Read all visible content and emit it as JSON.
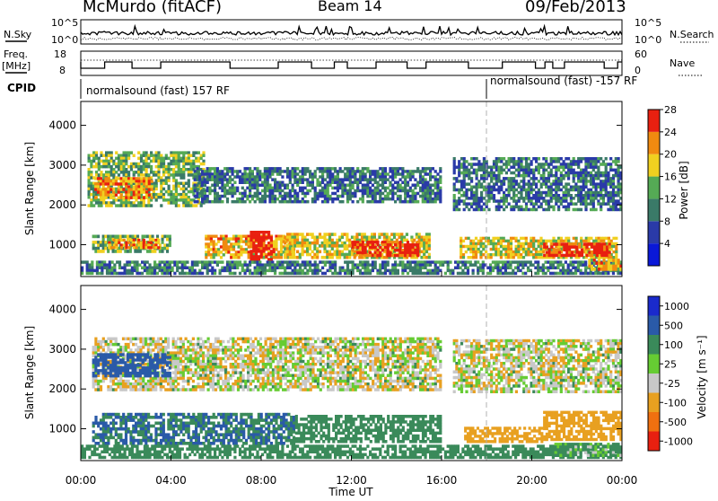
{
  "header": {
    "station": "McMurdo (fitACF)",
    "beam": "Beam 14",
    "date": "09/Feb/2013"
  },
  "panels": {
    "nsky": {
      "left_label": "N.Sky",
      "right_label": "N.Search",
      "left_ticks": [
        "10^5",
        "10^0"
      ],
      "right_ticks": [
        "10^5",
        "10^0"
      ]
    },
    "freq": {
      "left_label_1": "Freq.",
      "left_label_2": "[MHz]",
      "right_label": "Nave",
      "left_ticks": [
        "18",
        "8"
      ],
      "right_ticks": [
        "60",
        "0"
      ]
    },
    "cpid": {
      "label": "CPID",
      "mode_1": "normalsound (fast) 157 RF",
      "mode_2": "normalsound (fast) -157 RF"
    }
  },
  "axes": {
    "ylabel": "Slant Range [km]",
    "xlabel": "Time UT",
    "yticks": [
      "1000",
      "2000",
      "3000",
      "4000"
    ],
    "xticks": [
      "00:00",
      "04:00",
      "08:00",
      "12:00",
      "16:00",
      "20:00",
      "00:00"
    ]
  },
  "power_scale": {
    "label": "Power [dB]",
    "ticks": [
      "4",
      "8",
      "12",
      "16",
      "20",
      "24",
      "28"
    ],
    "colors": [
      "#0a18d8",
      "#2a3aa8",
      "#3a7a68",
      "#55aa55",
      "#f0d020",
      "#f08a10",
      "#e82010"
    ]
  },
  "velocity_scale": {
    "label": "Velocity [m s⁻¹]",
    "ticks": [
      "1000",
      "500",
      "100",
      "25",
      "-25",
      "-100",
      "-500",
      "-1000"
    ],
    "colors": [
      "#1a2acc",
      "#2a5aa8",
      "#3a8a5a",
      "#66cc33",
      "#c8c8c8",
      "#e8a020",
      "#f07010",
      "#e82010"
    ]
  },
  "chart_data": {
    "type": "heatmap",
    "title": "McMurdo (fitACF) Beam 14 09/Feb/2013",
    "xlabel": "Time UT",
    "ylabel": "Slant Range [km]",
    "xlim_hours": [
      0,
      24
    ],
    "ylim_km": [
      200,
      4600
    ],
    "grid": false,
    "panels": [
      {
        "name": "Power",
        "units": "dB",
        "range": [
          0,
          30
        ],
        "regions": [
          {
            "t": [
              0.3,
              5.5
            ],
            "r": [
              1950,
              3350
            ],
            "level": 14
          },
          {
            "t": [
              0.6,
              3.2
            ],
            "r": [
              2150,
              2700
            ],
            "level": 22
          },
          {
            "t": [
              0.5,
              4.0
            ],
            "r": [
              800,
              1250
            ],
            "level": 14
          },
          {
            "t": [
              1.2,
              3.5
            ],
            "r": [
              900,
              1150
            ],
            "level": 22
          },
          {
            "t": [
              5.5,
              9.5
            ],
            "r": [
              650,
              1250
            ],
            "level": 20
          },
          {
            "t": [
              7.5,
              8.5
            ],
            "r": [
              600,
              1350
            ],
            "level": 28
          },
          {
            "t": [
              9.0,
              15.5
            ],
            "r": [
              650,
              1300
            ],
            "level": 18
          },
          {
            "t": [
              12.0,
              15.0
            ],
            "r": [
              700,
              1100
            ],
            "level": 26
          },
          {
            "t": [
              5.0,
              16.0
            ],
            "r": [
              2050,
              2950
            ],
            "level": 9
          },
          {
            "t": [
              16.5,
              24.0
            ],
            "r": [
              1850,
              3200
            ],
            "level": 9
          },
          {
            "t": [
              16.8,
              23.8
            ],
            "r": [
              650,
              1200
            ],
            "level": 18
          },
          {
            "t": [
              20.5,
              23.5
            ],
            "r": [
              700,
              1050
            ],
            "level": 26
          },
          {
            "t": [
              0.0,
              24.0
            ],
            "r": [
              250,
              600
            ],
            "level": 10
          },
          {
            "t": [
              22.5,
              24.0
            ],
            "r": [
              350,
              650
            ],
            "level": 20
          }
        ]
      },
      {
        "name": "Velocity",
        "units": "m s-1",
        "range": [
          -1000,
          1000
        ],
        "regions": [
          {
            "t": [
              0.5,
              16.0
            ],
            "r": [
              1950,
              3300
            ],
            "v": 0
          },
          {
            "t": [
              16.5,
              24.0
            ],
            "r": [
              1900,
              3250
            ],
            "v": 0
          },
          {
            "t": [
              0.5,
              4.0
            ],
            "r": [
              2300,
              2900
            ],
            "v": 500
          },
          {
            "t": [
              0.5,
              9.5
            ],
            "r": [
              600,
              1400
            ],
            "v": 300
          },
          {
            "t": [
              9.5,
              16.0
            ],
            "r": [
              650,
              1350
            ],
            "v": 150
          },
          {
            "t": [
              17.0,
              20.5
            ],
            "r": [
              650,
              1050
            ],
            "v": -150
          },
          {
            "t": [
              20.5,
              24.0
            ],
            "r": [
              700,
              1450
            ],
            "v": -100
          },
          {
            "t": [
              0.0,
              24.0
            ],
            "r": [
              250,
              600
            ],
            "v": 150
          },
          {
            "t": [
              21.0,
              24.0
            ],
            "r": [
              300,
              650
            ],
            "v": 80
          }
        ]
      }
    ]
  }
}
